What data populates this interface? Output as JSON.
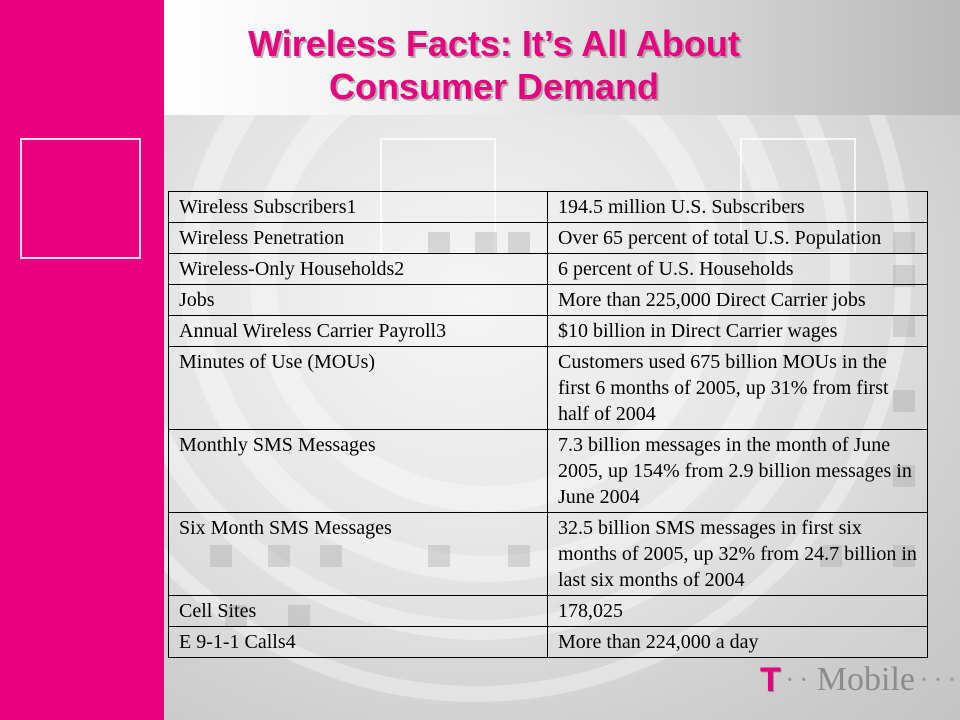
{
  "slide": {
    "title_line1": "Wireless Facts: It’s All About",
    "title_line2": "Consumer Demand"
  },
  "table": {
    "rows": [
      {
        "label": "Wireless Subscribers1",
        "value": "194.5 million U.S. Subscribers"
      },
      {
        "label": "Wireless Penetration",
        "value": "Over 65 percent of total U.S. Population"
      },
      {
        "label": "Wireless-Only Households2",
        "value": "6 percent of U.S. Households"
      },
      {
        "label": "Jobs",
        "value": "More than 225,000 Direct Carrier jobs"
      },
      {
        "label": "Annual Wireless Carrier Payroll3",
        "value": "$10 billion in Direct Carrier wages"
      },
      {
        "label": "Minutes of Use (MOUs)",
        "value": "Customers used 675 billion MOUs in the first 6 months of 2005, up 31% from first half of 2004"
      },
      {
        "label": "Monthly SMS Messages",
        "value": "7.3 billion messages in the month of June 2005, up 154% from 2.9 billion messages in June 2004"
      },
      {
        "label": "Six Month SMS Messages",
        "value": "32.5 billion SMS messages in first six months of 2005, up 32% from 24.7 billion in last six months of 2004"
      },
      {
        "label": "Cell Sites",
        "value": "178,025"
      },
      {
        "label": "E 9-1-1 Calls4",
        "value": "More than 224,000 a day"
      }
    ]
  },
  "logo": {
    "t": "T",
    "dots_left": "··",
    "word": "Mobile",
    "dots_right": "···"
  },
  "colors": {
    "brand_magenta": "#e8007e"
  }
}
